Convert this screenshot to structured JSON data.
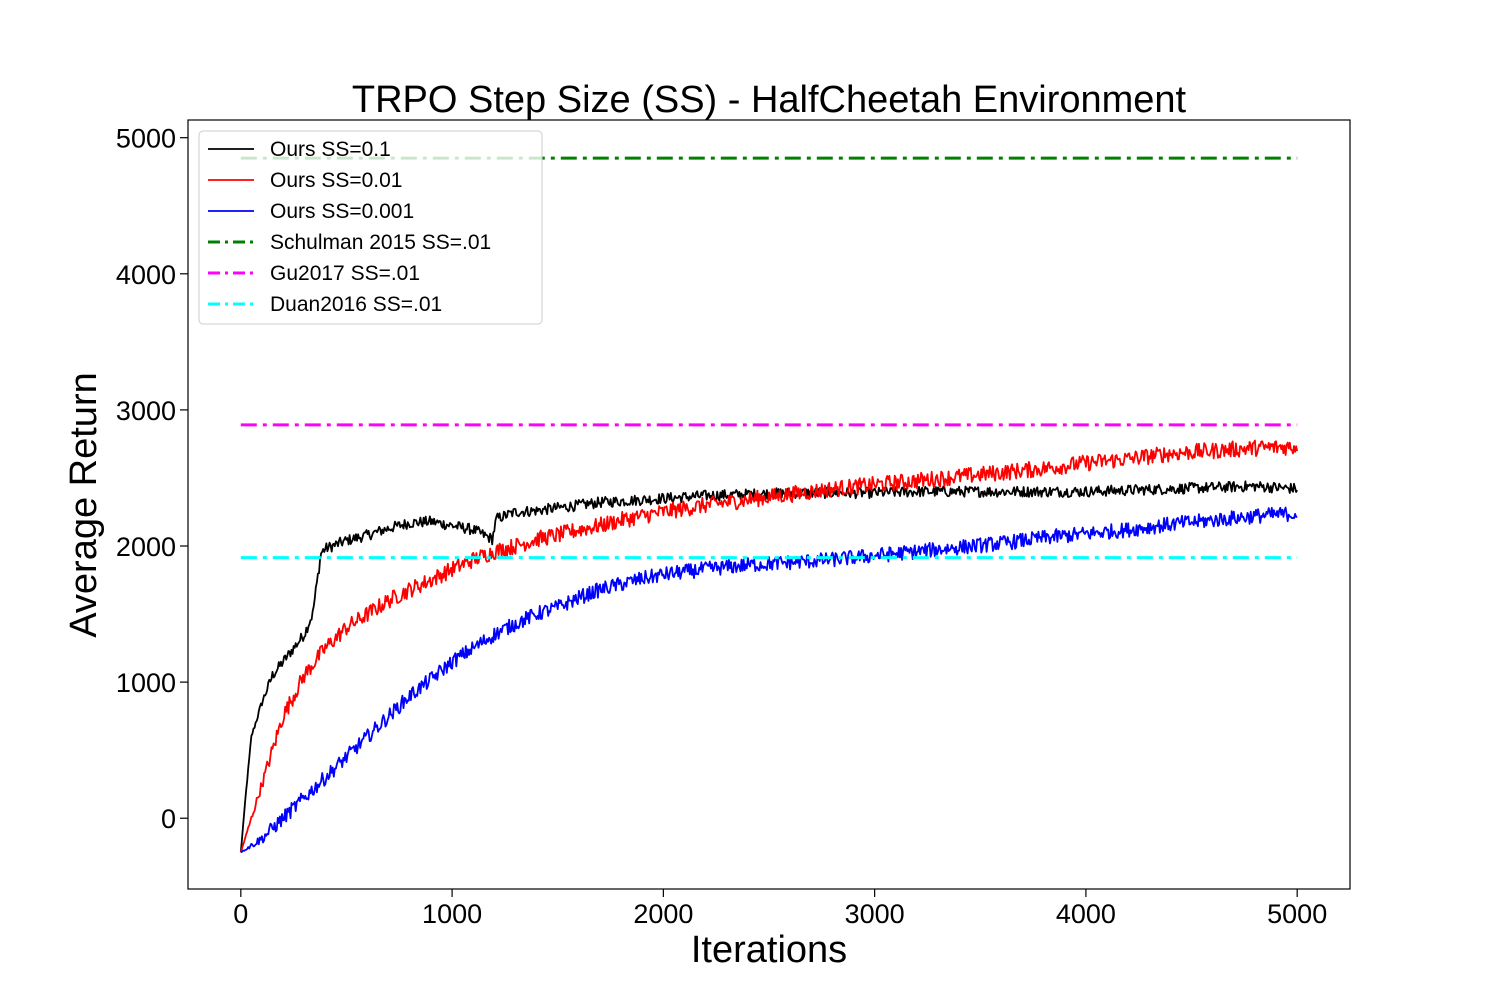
{
  "chart_data": {
    "type": "line",
    "title": "TRPO Step Size (SS) - HalfCheetah Environment",
    "xlabel": "Iterations",
    "ylabel": "Average Return",
    "xlim": [
      -250,
      5250
    ],
    "ylim": [
      -520,
      5130
    ],
    "xticks": [
      0,
      1000,
      2000,
      3000,
      4000,
      5000
    ],
    "yticks": [
      0,
      1000,
      2000,
      3000,
      4000,
      5000
    ],
    "xtick_labels": [
      "0",
      "1000",
      "2000",
      "3000",
      "4000",
      "5000"
    ],
    "ytick_labels": [
      "0",
      "1000",
      "2000",
      "3000",
      "4000",
      "5000"
    ],
    "grid": false,
    "legend_position": "top-left",
    "series": [
      {
        "name": "Ours SS=0.1",
        "color": "#000000",
        "style": "solid",
        "noise": 40,
        "x": [
          0,
          25,
          50,
          100,
          150,
          200,
          250,
          300,
          340,
          380,
          400,
          500,
          600,
          700,
          800,
          900,
          1000,
          1100,
          1190,
          1210,
          1300,
          1400,
          1500,
          1600,
          1700,
          1800,
          1900,
          2000,
          2200,
          2400,
          2600,
          2800,
          3000,
          3200,
          3400,
          3600,
          3800,
          4000,
          4200,
          4400,
          4600,
          4800,
          5000
        ],
        "y": [
          -250,
          200,
          600,
          850,
          1050,
          1150,
          1250,
          1350,
          1500,
          1950,
          1980,
          2040,
          2080,
          2130,
          2170,
          2180,
          2150,
          2120,
          2050,
          2200,
          2250,
          2260,
          2280,
          2300,
          2320,
          2330,
          2340,
          2350,
          2370,
          2380,
          2390,
          2390,
          2390,
          2400,
          2400,
          2400,
          2400,
          2400,
          2410,
          2420,
          2430,
          2440,
          2420
        ]
      },
      {
        "name": "Ours SS=0.01",
        "color": "#ff0000",
        "style": "solid",
        "noise": 60,
        "x": [
          0,
          50,
          100,
          200,
          300,
          400,
          500,
          600,
          700,
          800,
          900,
          1000,
          1100,
          1200,
          1300,
          1400,
          1500,
          1600,
          1700,
          1800,
          1900,
          2000,
          2200,
          2400,
          2600,
          2800,
          3000,
          3200,
          3400,
          3600,
          3800,
          4000,
          4200,
          4400,
          4600,
          4800,
          5000
        ],
        "y": [
          -250,
          0,
          250,
          750,
          1050,
          1250,
          1400,
          1500,
          1600,
          1680,
          1750,
          1830,
          1900,
          1960,
          2000,
          2050,
          2080,
          2120,
          2150,
          2190,
          2220,
          2250,
          2300,
          2340,
          2380,
          2420,
          2450,
          2480,
          2510,
          2540,
          2570,
          2610,
          2640,
          2680,
          2700,
          2720,
          2730
        ]
      },
      {
        "name": "Ours SS=0.001",
        "color": "#0000ff",
        "style": "solid",
        "noise": 55,
        "x": [
          0,
          100,
          200,
          300,
          400,
          500,
          600,
          700,
          800,
          900,
          1000,
          1100,
          1200,
          1300,
          1400,
          1500,
          1600,
          1700,
          1800,
          1900,
          2000,
          2200,
          2400,
          2600,
          2800,
          3000,
          3200,
          3400,
          3600,
          3800,
          4000,
          4200,
          4400,
          4600,
          4800,
          5000
        ],
        "y": [
          -250,
          -150,
          0,
          150,
          300,
          450,
          600,
          750,
          900,
          1020,
          1150,
          1250,
          1350,
          1430,
          1500,
          1550,
          1620,
          1680,
          1720,
          1760,
          1790,
          1830,
          1860,
          1880,
          1900,
          1930,
          1960,
          1990,
          2020,
          2060,
          2090,
          2120,
          2160,
          2190,
          2220,
          2240
        ]
      },
      {
        "name": "Schulman 2015 SS=.01",
        "color": "#008000",
        "style": "dashdot",
        "noise": 0,
        "x": [
          0,
          5000
        ],
        "y": [
          4850,
          4850
        ]
      },
      {
        "name": "Gu2017 SS=.01",
        "color": "#ff00ff",
        "style": "dashdot",
        "noise": 0,
        "x": [
          0,
          5000
        ],
        "y": [
          2890,
          2890
        ]
      },
      {
        "name": "Duan2016 SS=.01",
        "color": "#00ffff",
        "style": "dashdot",
        "noise": 0,
        "x": [
          0,
          5000
        ],
        "y": [
          1915,
          1915
        ]
      }
    ]
  }
}
